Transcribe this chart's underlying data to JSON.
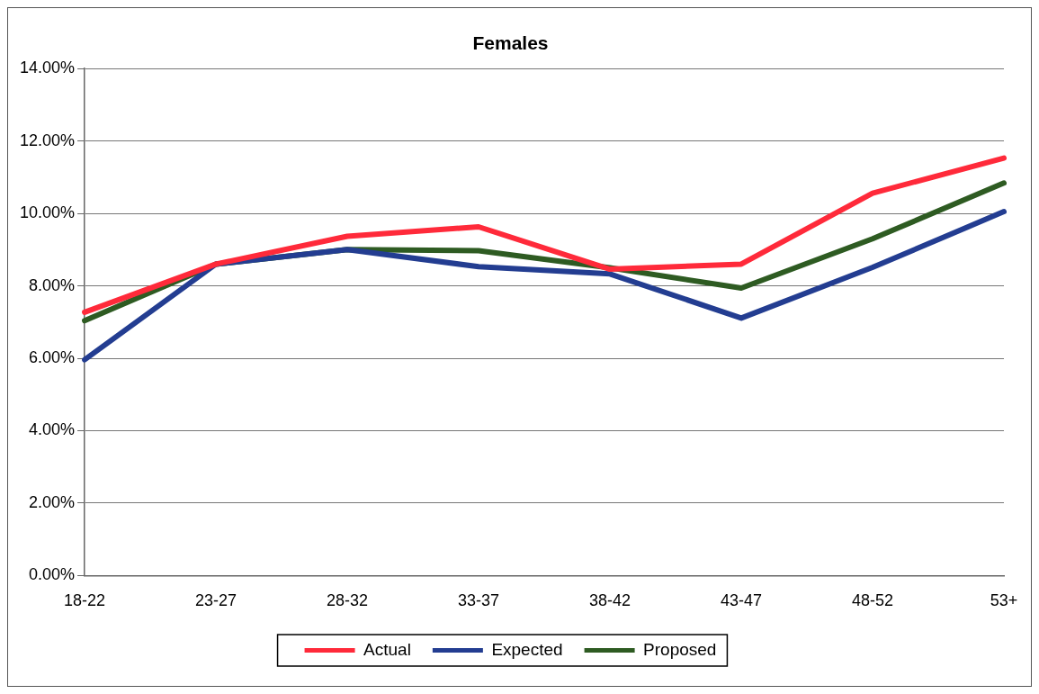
{
  "chart_data": {
    "type": "line",
    "title": "Females",
    "categories": [
      "18-22",
      "23-27",
      "28-32",
      "33-37",
      "38-42",
      "43-47",
      "48-52",
      "53+"
    ],
    "series": [
      {
        "name": "Actual",
        "color": "#ff2a3a",
        "values": [
          7.27,
          8.6,
          9.37,
          9.63,
          8.46,
          8.6,
          10.56,
          11.53
        ]
      },
      {
        "name": "Expected",
        "color": "#233d91",
        "values": [
          5.96,
          8.6,
          9.0,
          8.53,
          8.33,
          7.11,
          8.51,
          10.05
        ]
      },
      {
        "name": "Proposed",
        "color": "#2e5b22",
        "values": [
          7.04,
          8.6,
          9.0,
          8.97,
          8.5,
          7.94,
          9.3,
          10.84
        ]
      }
    ],
    "ylim": [
      0,
      14
    ],
    "yticks": [
      {
        "value": 0,
        "label": "0.00%"
      },
      {
        "value": 2,
        "label": "2.00%"
      },
      {
        "value": 4,
        "label": "4.00%"
      },
      {
        "value": 6,
        "label": "6.00%"
      },
      {
        "value": 8,
        "label": "8.00%"
      },
      {
        "value": 10,
        "label": "10.00%"
      },
      {
        "value": 12,
        "label": "12.00%"
      },
      {
        "value": 14,
        "label": "14.00%"
      }
    ],
    "grid": "y",
    "legend": "bottom",
    "marker": "none",
    "line_style": "solid"
  }
}
